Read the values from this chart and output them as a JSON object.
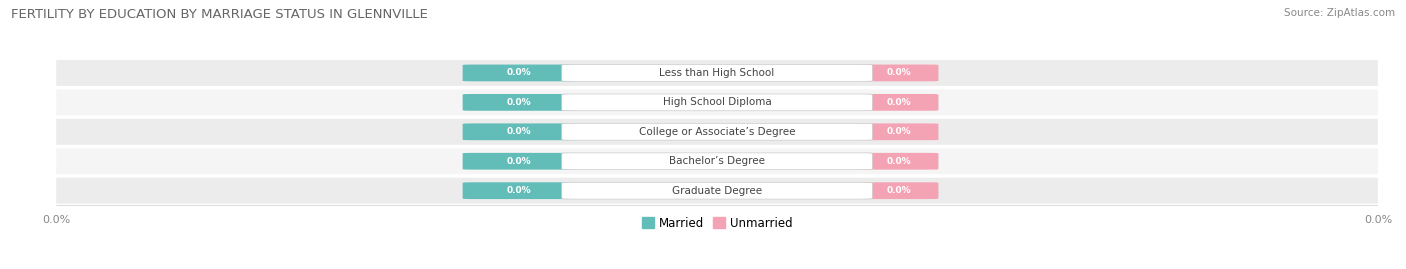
{
  "title": "FERTILITY BY EDUCATION BY MARRIAGE STATUS IN GLENNVILLE",
  "source": "Source: ZipAtlas.com",
  "categories": [
    "Less than High School",
    "High School Diploma",
    "College or Associate’s Degree",
    "Bachelor’s Degree",
    "Graduate Degree"
  ],
  "married_values": [
    0.0,
    0.0,
    0.0,
    0.0,
    0.0
  ],
  "unmarried_values": [
    0.0,
    0.0,
    0.0,
    0.0,
    0.0
  ],
  "married_color": "#62bdb9",
  "unmarried_color": "#f4a3b5",
  "row_bg_colors": [
    "#ececec",
    "#f5f5f5"
  ],
  "label_color": "#444444",
  "title_color": "#666666",
  "source_color": "#888888",
  "axis_label_color": "#888888",
  "value_text_color": "#ffffff",
  "figsize": [
    14.06,
    2.69
  ],
  "dpi": 100
}
